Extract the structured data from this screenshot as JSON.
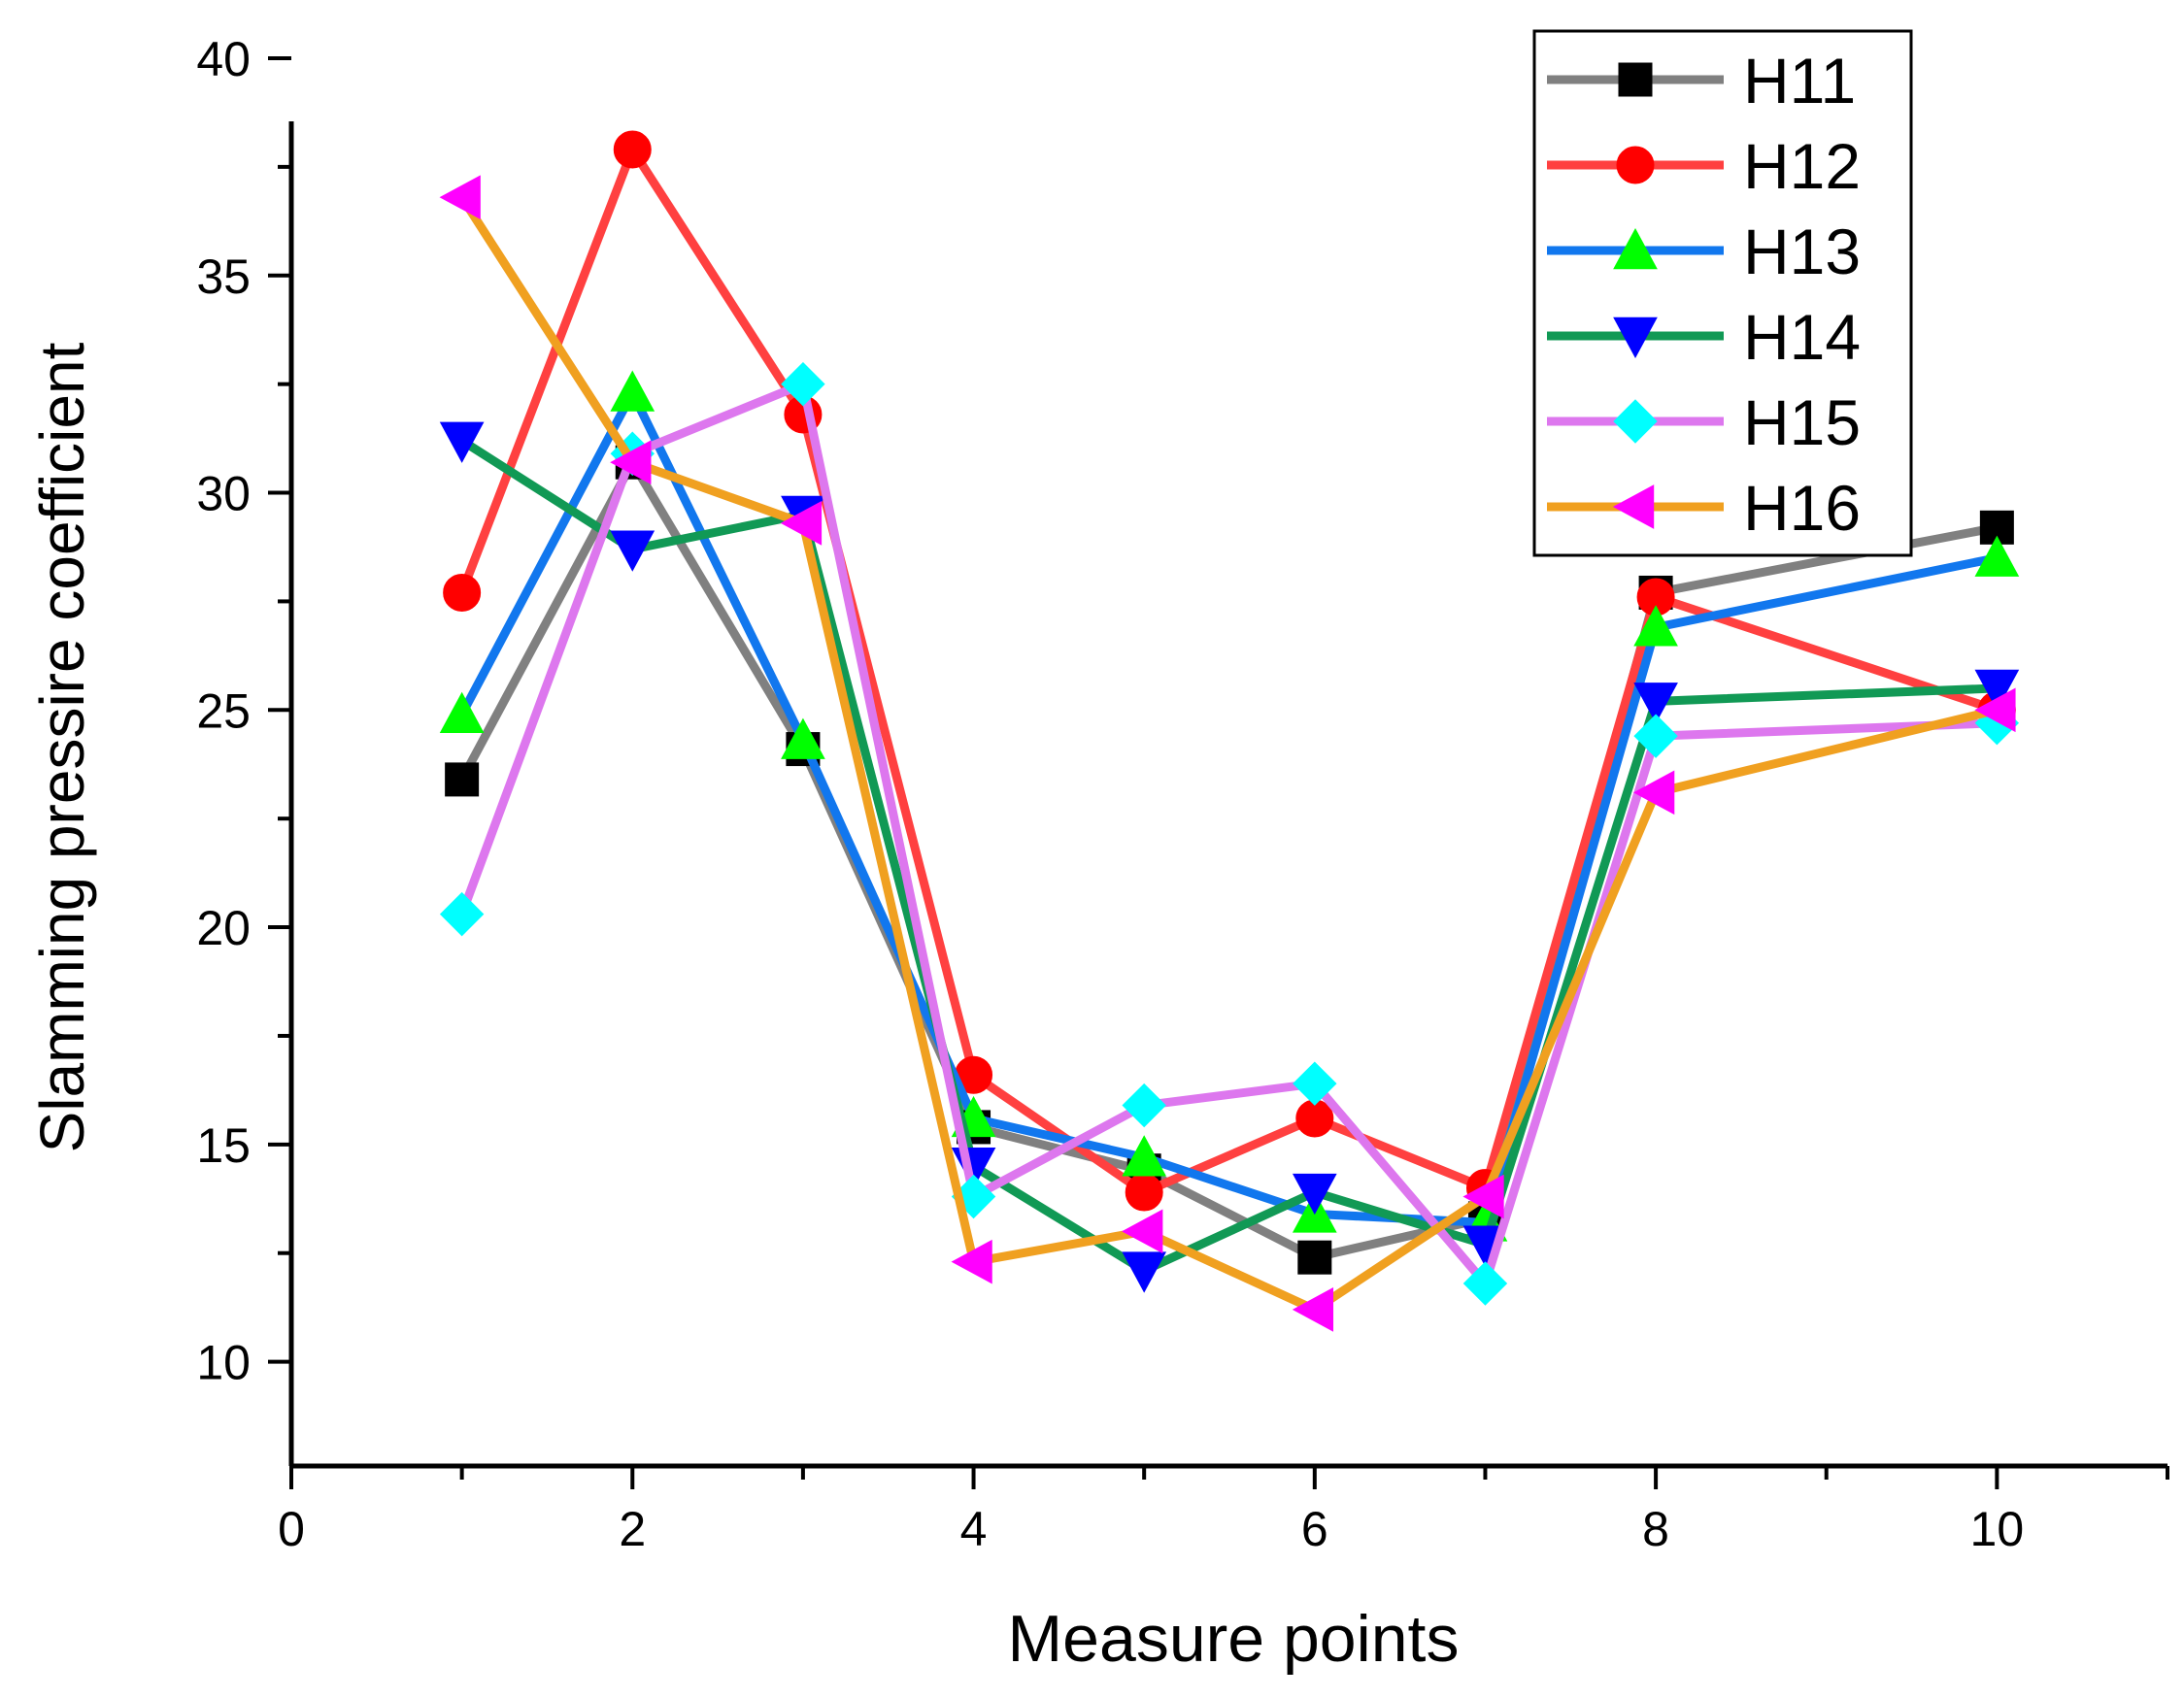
{
  "chart_data": {
    "type": "line",
    "title": "",
    "xlabel": "Measure points",
    "ylabel": "Slamming pressire coefficient",
    "xlim": [
      0,
      11
    ],
    "ylim": [
      7.6,
      40
    ],
    "xticks": [
      0,
      2,
      4,
      6,
      8,
      10
    ],
    "yticks": [
      10,
      15,
      20,
      25,
      30,
      35,
      40
    ],
    "x_minor_step": 1,
    "y_minor_step": 2.5,
    "grid": false,
    "legend_position": "top-right",
    "series": [
      {
        "name": "H11",
        "line_color": "#808080",
        "marker": "square",
        "marker_color": "#000000",
        "x": [
          1,
          2,
          3,
          4,
          5,
          6,
          7,
          8,
          10
        ],
        "values": [
          23.4,
          30.7,
          24.1,
          15.4,
          14.4,
          12.4,
          13.3,
          27.7,
          29.2
        ]
      },
      {
        "name": "H12",
        "line_color": "#ff4040",
        "marker": "circle",
        "marker_color": "#ff0000",
        "x": [
          1,
          2,
          3,
          4,
          5,
          6,
          7,
          8,
          10
        ],
        "values": [
          27.7,
          37.9,
          31.8,
          16.6,
          13.9,
          15.6,
          14.0,
          27.6,
          25.0
        ]
      },
      {
        "name": "H13",
        "line_color": "#1177ee",
        "marker": "triangle-up",
        "marker_color": "#00ff00",
        "x": [
          1,
          2,
          3,
          4,
          5,
          6,
          7,
          8,
          10
        ],
        "values": [
          24.9,
          32.3,
          24.3,
          15.6,
          14.7,
          13.4,
          13.2,
          26.9,
          28.5
        ]
      },
      {
        "name": "H14",
        "line_color": "#119955",
        "marker": "triangle-down",
        "marker_color": "#0000ff",
        "x": [
          1,
          2,
          3,
          4,
          5,
          6,
          7,
          8,
          10
        ],
        "values": [
          31.2,
          28.7,
          29.5,
          14.5,
          12.1,
          13.9,
          12.7,
          25.2,
          25.5
        ]
      },
      {
        "name": "H15",
        "line_color": "#dd77ee",
        "marker": "diamond",
        "marker_color": "#00ffff",
        "x": [
          1,
          2,
          3,
          4,
          5,
          6,
          7,
          8,
          10
        ],
        "values": [
          20.3,
          30.9,
          32.5,
          13.8,
          15.9,
          16.4,
          11.8,
          24.4,
          24.7
        ]
      },
      {
        "name": "H16",
        "line_color": "#f0a020",
        "marker": "triangle-left",
        "marker_color": "#ff00ff",
        "x": [
          1,
          2,
          3,
          4,
          5,
          6,
          7,
          8,
          10
        ],
        "values": [
          36.8,
          30.7,
          29.3,
          12.3,
          13.0,
          11.2,
          13.8,
          23.1,
          25.0
        ]
      }
    ]
  }
}
